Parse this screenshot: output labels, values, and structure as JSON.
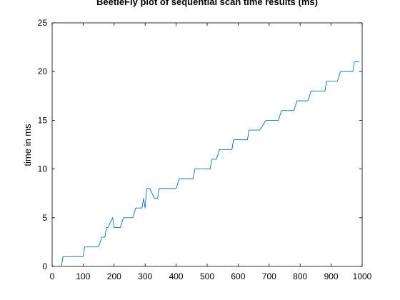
{
  "chart_data": {
    "type": "line",
    "title": "BeetleFly plot of sequential scan time results (ms)",
    "xlabel": "",
    "ylabel": "time in ms",
    "xlim": [
      0,
      1000
    ],
    "ylim": [
      0,
      25
    ],
    "xticks": [
      0,
      100,
      200,
      300,
      400,
      500,
      600,
      700,
      800,
      900,
      1000
    ],
    "yticks": [
      0,
      5,
      10,
      15,
      20,
      25
    ],
    "grid": false,
    "series": [
      {
        "color": "#0072bd",
        "x": [
          30,
          35,
          100,
          105,
          150,
          160,
          170,
          175,
          180,
          195,
          200,
          220,
          230,
          260,
          270,
          280,
          290,
          295,
          300,
          305,
          310,
          315,
          330,
          340,
          345,
          360,
          365,
          400,
          410,
          455,
          460,
          510,
          515,
          530,
          540,
          545,
          580,
          585,
          630,
          635,
          660,
          670,
          690,
          700,
          730,
          740,
          780,
          790,
          825,
          835,
          880,
          885,
          920,
          930,
          970,
          975,
          990
        ],
        "y": [
          0,
          1,
          1,
          2,
          2,
          3,
          3,
          4,
          4,
          5,
          4,
          4,
          5,
          5,
          6,
          6,
          6,
          7,
          6,
          8,
          8,
          8,
          7,
          7,
          8,
          8,
          8,
          8,
          9,
          9,
          10,
          10,
          11,
          11,
          12,
          12,
          12,
          13,
          13,
          14,
          14,
          14,
          15,
          15,
          15,
          16,
          16,
          17,
          17,
          18,
          18,
          19,
          19,
          20,
          20,
          21,
          21
        ]
      }
    ]
  }
}
